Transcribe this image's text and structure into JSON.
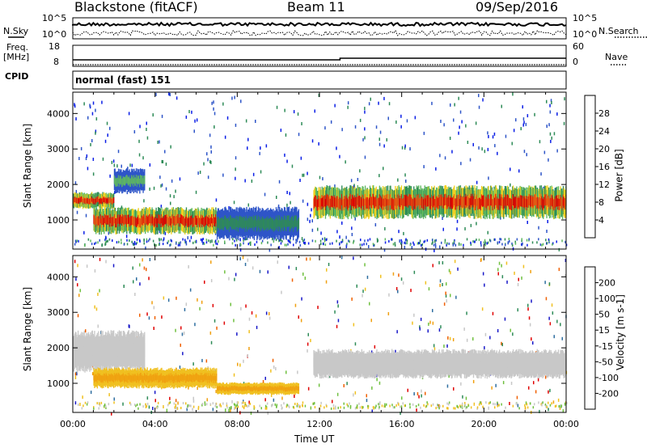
{
  "header": {
    "station": "Blackstone (fitACF)",
    "beam": "Beam 11",
    "date": "09/Sep/2016"
  },
  "top_panels": {
    "nsky_label": "N.Sky",
    "nsearch_label": "N.Search",
    "freq_label_1": "Freq.",
    "freq_label_2": "[MHz]",
    "nave_label": "Nave",
    "cpid_label": "CPID",
    "cpid_value": "normal (fast) 151",
    "noise_ticks_left": [
      "10^5",
      "10^0"
    ],
    "noise_ticks_right": [
      "10^5",
      "10^0"
    ],
    "freq_ticks": [
      "18",
      "8"
    ],
    "nave_ticks": [
      "60",
      "0"
    ]
  },
  "chart_data": [
    {
      "type": "heatmap",
      "panel": "power",
      "ylabel": "Slant Range [km]",
      "ylim": [
        180,
        4600
      ],
      "yticks": [
        1000,
        2000,
        3000,
        4000
      ],
      "xlim": [
        0,
        24
      ],
      "colorbar": {
        "label": "Power [dB]",
        "ticks": [
          4,
          8,
          12,
          16,
          20,
          24,
          28
        ],
        "colors": [
          "#0a1ee6",
          "#2e55c8",
          "#2e8b57",
          "#5fb85f",
          "#f0d020",
          "#f29a10",
          "#e85010",
          "#e00000"
        ]
      },
      "bands": [
        {
          "t0": 0.0,
          "t1": 2.0,
          "r0": 1350,
          "r1": 1750,
          "intensity": "high"
        },
        {
          "t0": 2.0,
          "t1": 3.5,
          "r0": 1800,
          "r1": 2400,
          "intensity": "medium"
        },
        {
          "t0": 1.0,
          "t1": 7.0,
          "r0": 650,
          "r1": 1300,
          "intensity": "high"
        },
        {
          "t0": 7.0,
          "t1": 11.0,
          "r0": 500,
          "r1": 1300,
          "intensity": "low"
        },
        {
          "t0": 11.7,
          "t1": 24.0,
          "r0": 1100,
          "r1": 1900,
          "intensity": "high"
        }
      ]
    },
    {
      "type": "heatmap",
      "panel": "velocity",
      "ylabel": "Slant Range [km]",
      "xlabel": "Time UT",
      "ylim": [
        180,
        4600
      ],
      "yticks": [
        1000,
        2000,
        3000,
        4000
      ],
      "xlim": [
        0,
        24
      ],
      "xticks": [
        "00:00",
        "04:00",
        "08:00",
        "12:00",
        "16:00",
        "20:00",
        "00:00"
      ],
      "colorbar": {
        "label": "Velocity [m s-1]",
        "ticks": [
          200,
          100,
          50,
          15,
          -15,
          -50,
          -100,
          -200
        ],
        "colors": [
          "#1818c8",
          "#2e6ea0",
          "#2e8b57",
          "#70c040",
          "#c8c8c8",
          "#f0c020",
          "#f0a010",
          "#f06000",
          "#e00000"
        ]
      },
      "bands": [
        {
          "t0": 0.0,
          "t1": 3.5,
          "r0": 1400,
          "r1": 2400,
          "color": "ground"
        },
        {
          "t0": 1.0,
          "t1": 7.0,
          "r0": 900,
          "r1": 1400,
          "color": "negative"
        },
        {
          "t0": 7.0,
          "t1": 11.0,
          "r0": 700,
          "r1": 1000,
          "color": "negative"
        },
        {
          "t0": 11.7,
          "t1": 24.0,
          "r0": 1200,
          "r1": 1900,
          "color": "ground"
        }
      ]
    }
  ]
}
